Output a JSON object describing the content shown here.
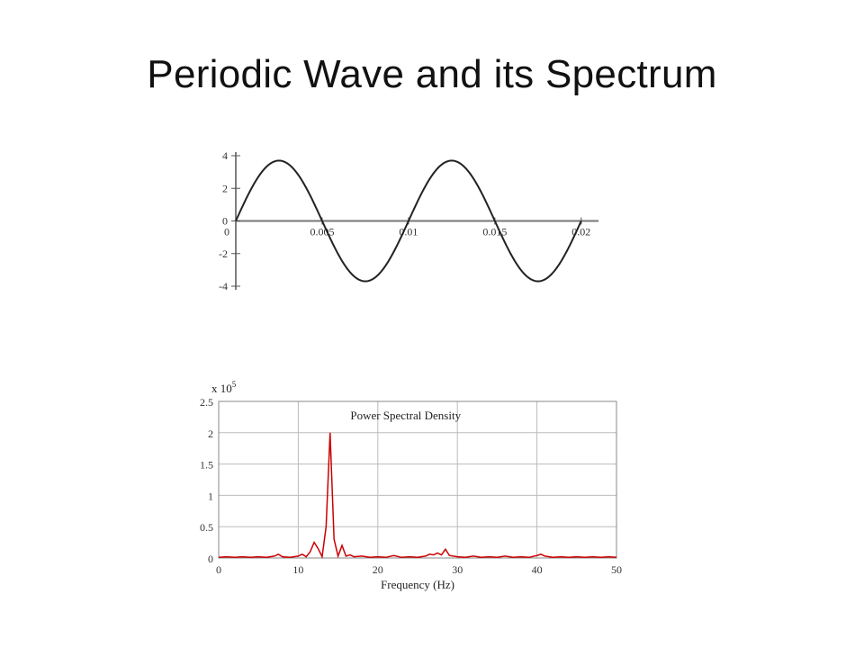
{
  "slide": {
    "title": "Periodic Wave and its Spectrum"
  },
  "chart_data": [
    {
      "type": "line",
      "title": "",
      "xlabel": "",
      "ylabel": "",
      "xlim": [
        0,
        0.021
      ],
      "ylim": [
        -4,
        4
      ],
      "grid": false,
      "x_ticks": [
        "0",
        "0.005",
        "0.01",
        "0.015",
        "0.02"
      ],
      "y_ticks": [
        "4",
        "2",
        "0",
        "-2",
        "-4"
      ],
      "series": [
        {
          "function": "3.7*sin(2*pi*100*t)",
          "x": [
            0,
            0.00125,
            0.0025,
            0.00375,
            0.005,
            0.00625,
            0.0075,
            0.00875,
            0.01,
            0.01125,
            0.0125,
            0.01375,
            0.015,
            0.01625,
            0.0175,
            0.01875,
            0.02
          ],
          "y": [
            0,
            2.6,
            3.7,
            2.6,
            0,
            -2.6,
            -3.7,
            -2.6,
            0,
            2.6,
            3.7,
            2.6,
            0,
            -2.6,
            -3.7,
            -2.6,
            0
          ],
          "color": "#222222"
        }
      ]
    },
    {
      "type": "line",
      "title": "Power Spectral Density",
      "xlabel": "Frequency (Hz)",
      "ylabel": "",
      "y_multiplier": "x 10",
      "y_multiplier_exp": "5",
      "xlim": [
        0,
        50
      ],
      "ylim": [
        0,
        2.5
      ],
      "grid": true,
      "x_ticks": [
        "0",
        "10",
        "20",
        "30",
        "40",
        "50"
      ],
      "y_ticks": [
        "2.5",
        "2",
        "1.5",
        "1",
        "0.5",
        "0"
      ],
      "series": [
        {
          "color": "#cc0000",
          "x": [
            0,
            1,
            2,
            3,
            4,
            5,
            6,
            7,
            7.5,
            8,
            9,
            10,
            10.5,
            11,
            11.5,
            12,
            12.5,
            13,
            13.5,
            14,
            14.5,
            15,
            15.5,
            16,
            16.5,
            17,
            18,
            19,
            20,
            21,
            22,
            23,
            24,
            25,
            26,
            26.5,
            27,
            27.5,
            28,
            28.5,
            29,
            30,
            31,
            32,
            33,
            34,
            35,
            36,
            37,
            38,
            39,
            40,
            40.5,
            41,
            42,
            43,
            44,
            45,
            46,
            47,
            48,
            49,
            50
          ],
          "y": [
            0.01,
            0.02,
            0.01,
            0.02,
            0.01,
            0.02,
            0.01,
            0.03,
            0.06,
            0.02,
            0.01,
            0.03,
            0.06,
            0.02,
            0.1,
            0.25,
            0.15,
            0.02,
            0.5,
            2.0,
            0.3,
            0.03,
            0.2,
            0.03,
            0.05,
            0.02,
            0.03,
            0.01,
            0.02,
            0.01,
            0.04,
            0.01,
            0.02,
            0.01,
            0.03,
            0.06,
            0.05,
            0.08,
            0.05,
            0.14,
            0.04,
            0.02,
            0.01,
            0.03,
            0.01,
            0.02,
            0.01,
            0.03,
            0.01,
            0.02,
            0.01,
            0.04,
            0.06,
            0.03,
            0.01,
            0.02,
            0.01,
            0.02,
            0.01,
            0.02,
            0.01,
            0.02,
            0.01
          ]
        }
      ]
    }
  ]
}
